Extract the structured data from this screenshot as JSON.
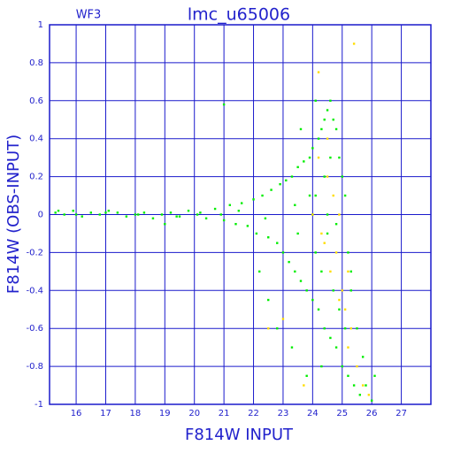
{
  "chart_data": {
    "type": "scatter",
    "title": "lmc_u65006",
    "annotation": "WF3",
    "x_label": "F814W INPUT",
    "y_label": "F814W (OBS-INPUT)",
    "xlim": [
      15.1,
      28
    ],
    "ylim": [
      -1,
      1
    ],
    "xticks": [
      16,
      17,
      18,
      19,
      20,
      21,
      22,
      23,
      24,
      25,
      26,
      27
    ],
    "yticks": [
      -1,
      -0.8,
      -0.6,
      -0.4,
      -0.2,
      0,
      0.2,
      0.4,
      0.6,
      0.8,
      1
    ],
    "grid": true,
    "series": [
      {
        "color": "#00ee00",
        "x": [
          15.3,
          15.6,
          15.9,
          16.2,
          16.5,
          16.8,
          17.1,
          17.4,
          17.7,
          18.0,
          18.3,
          18.6,
          18.9,
          19.2,
          19.5,
          19.8,
          20.1,
          20.4,
          20.7,
          21.0,
          21.2,
          21.4,
          21.6,
          21.8,
          22.0,
          22.1,
          22.3,
          22.5,
          22.6,
          22.8,
          22.9,
          23.0,
          23.1,
          23.2,
          23.3,
          23.4,
          23.5,
          23.6,
          23.7,
          23.8,
          23.9,
          24.0,
          24.0,
          24.1,
          24.1,
          24.2,
          24.2,
          24.3,
          24.3,
          24.4,
          24.4,
          24.5,
          24.5,
          24.6,
          24.6,
          24.7,
          24.7,
          24.8,
          24.8,
          24.9,
          24.9,
          25.0,
          25.0,
          25.1,
          25.1,
          25.2,
          25.2,
          25.3,
          25.4,
          25.5,
          25.6,
          25.7,
          25.8,
          26.0,
          26.1,
          22.2,
          22.5,
          22.8,
          23.3,
          23.8,
          24.3,
          24.6,
          24.4,
          23.9,
          23.5,
          21.0,
          19.0,
          23.6,
          24.1,
          15.4,
          16.0,
          17.0,
          18.1,
          19.4,
          20.2,
          20.9,
          21.5,
          22.4,
          23.4,
          24.0,
          24.5,
          24.8,
          25.3
        ],
        "y": [
          0.01,
          0.0,
          0.02,
          -0.01,
          0.01,
          0.0,
          0.02,
          0.01,
          -0.01,
          0.0,
          0.01,
          -0.02,
          0.0,
          0.01,
          -0.01,
          0.02,
          0.0,
          -0.02,
          0.03,
          -0.03,
          0.05,
          -0.05,
          0.06,
          -0.06,
          0.08,
          -0.1,
          0.1,
          -0.12,
          0.13,
          -0.15,
          0.16,
          -0.2,
          0.18,
          -0.25,
          0.2,
          -0.3,
          0.25,
          -0.35,
          0.28,
          -0.4,
          0.3,
          -0.45,
          0.35,
          -0.2,
          0.1,
          0.4,
          -0.5,
          0.45,
          -0.3,
          0.5,
          -0.6,
          0.55,
          -0.1,
          0.6,
          -0.65,
          0.5,
          -0.4,
          0.45,
          -0.7,
          0.3,
          -0.5,
          0.2,
          -0.8,
          0.1,
          -0.6,
          -0.2,
          -0.85,
          -0.4,
          -0.9,
          -0.6,
          -0.95,
          -0.75,
          -0.9,
          -0.98,
          -0.85,
          -0.3,
          -0.45,
          -0.6,
          -0.7,
          -0.85,
          -0.8,
          0.3,
          0.2,
          0.1,
          -0.1,
          0.58,
          -0.05,
          0.45,
          0.6,
          0.02,
          0.0,
          0.01,
          0.0,
          -0.01,
          0.01,
          0.0,
          0.02,
          -0.02,
          0.05,
          0.0,
          0.0,
          -0.05,
          -0.3
        ]
      },
      {
        "color": "#ffdd00",
        "x": [
          24.0,
          24.3,
          24.5,
          24.6,
          24.7,
          24.8,
          24.9,
          25.0,
          25.1,
          25.2,
          25.3,
          25.5,
          25.7,
          25.9,
          24.2,
          24.5,
          25.4,
          24.2,
          23.0,
          22.5,
          23.7,
          25.2,
          24.9,
          24.4
        ],
        "y": [
          0.0,
          -0.1,
          0.2,
          -0.3,
          0.1,
          -0.2,
          0.0,
          -0.4,
          -0.5,
          -0.3,
          -0.6,
          -0.8,
          -0.9,
          -0.95,
          0.3,
          0.4,
          0.9,
          0.75,
          -0.55,
          -0.6,
          -0.9,
          -0.7,
          -0.45,
          -0.15
        ]
      }
    ]
  }
}
